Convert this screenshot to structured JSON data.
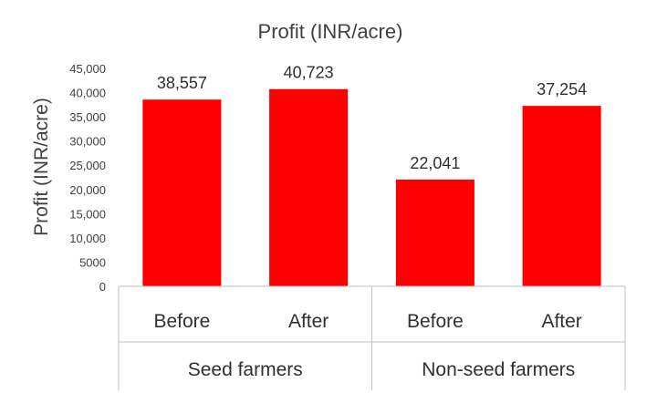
{
  "chart_data": {
    "type": "bar",
    "title": "Profit (INR/acre)",
    "ylabel": "Profit (INR/acre)",
    "xlabel": "",
    "ylim": [
      0,
      45000
    ],
    "yticks": [
      0,
      5000,
      10000,
      15000,
      20000,
      25000,
      30000,
      35000,
      40000,
      45000
    ],
    "ytick_labels": [
      "0",
      "5000",
      "10,000",
      "15,000",
      "20,000",
      "25,000",
      "30,000",
      "35,000",
      "40,000",
      "45,000"
    ],
    "categories": [
      "Before",
      "After",
      "Before",
      "After"
    ],
    "groups": [
      {
        "label": "Seed farmers",
        "categories": [
          0,
          1
        ]
      },
      {
        "label": "Non-seed farmers",
        "categories": [
          2,
          3
        ]
      }
    ],
    "values": [
      38557,
      40723,
      22041,
      37254
    ],
    "value_labels": [
      "38,557",
      "40,723",
      "22,041",
      "37,254"
    ],
    "bar_color": "#ff0000",
    "grid": false,
    "legend": "none"
  }
}
